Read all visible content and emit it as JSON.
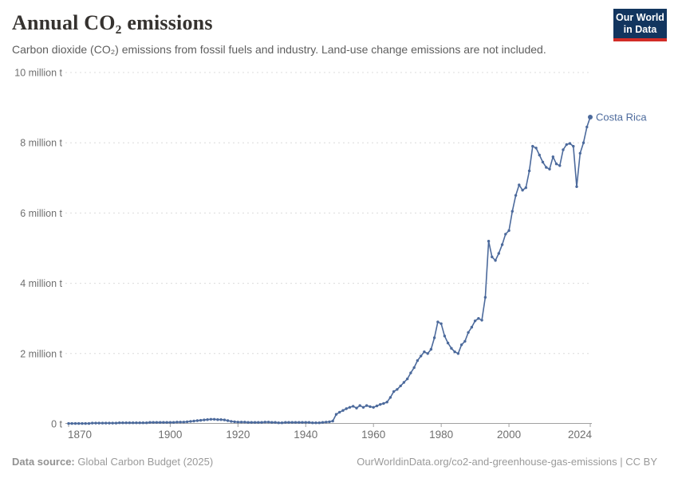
{
  "header": {
    "title": "Annual CO₂ emissions",
    "subtitle": "Carbon dioxide (CO₂) emissions from fossil fuels and industry. Land-use change emissions are not included.",
    "logo": {
      "line1": "Our World",
      "line2": "in Data",
      "bg_color": "#12355F",
      "accent_color": "#D22C27"
    }
  },
  "footer": {
    "source_label": "Data source:",
    "source_value": " Global Carbon Budget (2025)",
    "attribution": "OurWorldinData.org/co2-and-greenhouse-gas-emissions | CC BY"
  },
  "chart_data": {
    "type": "line",
    "title": "Annual CO₂ emissions",
    "series_label": "Costa Rica",
    "unit": "tonnes",
    "line_color": "#4C6A9C",
    "grid": "horizontal-dashed",
    "legend_position": "end-of-line-label",
    "ylim_million_t": [
      0,
      10
    ],
    "y_ticks": [
      {
        "value": 0,
        "label": "0 t"
      },
      {
        "value": 2,
        "label": "2 million t"
      },
      {
        "value": 4,
        "label": "4 million t"
      },
      {
        "value": 6,
        "label": "6 million t"
      },
      {
        "value": 8,
        "label": "8 million t"
      },
      {
        "value": 10,
        "label": "10 million t"
      }
    ],
    "x_ticks": [
      1870,
      1900,
      1920,
      1940,
      1960,
      1980,
      2000,
      2024
    ],
    "year_start": 1870,
    "year_end": 2024,
    "values_million_t": [
      0.01,
      0.01,
      0.01,
      0.01,
      0.01,
      0.01,
      0.01,
      0.02,
      0.02,
      0.02,
      0.02,
      0.02,
      0.02,
      0.02,
      0.02,
      0.03,
      0.03,
      0.03,
      0.03,
      0.03,
      0.03,
      0.03,
      0.03,
      0.03,
      0.04,
      0.04,
      0.04,
      0.04,
      0.04,
      0.04,
      0.04,
      0.04,
      0.05,
      0.05,
      0.05,
      0.06,
      0.07,
      0.08,
      0.09,
      0.1,
      0.11,
      0.12,
      0.13,
      0.13,
      0.12,
      0.12,
      0.11,
      0.09,
      0.07,
      0.06,
      0.05,
      0.05,
      0.05,
      0.04,
      0.04,
      0.04,
      0.04,
      0.04,
      0.05,
      0.05,
      0.04,
      0.04,
      0.03,
      0.03,
      0.04,
      0.04,
      0.04,
      0.04,
      0.04,
      0.04,
      0.04,
      0.04,
      0.03,
      0.03,
      0.03,
      0.04,
      0.05,
      0.06,
      0.08,
      0.27,
      0.33,
      0.38,
      0.43,
      0.47,
      0.5,
      0.45,
      0.52,
      0.47,
      0.52,
      0.49,
      0.47,
      0.51,
      0.55,
      0.58,
      0.62,
      0.75,
      0.92,
      0.98,
      1.08,
      1.18,
      1.28,
      1.45,
      1.6,
      1.8,
      1.93,
      2.05,
      2.0,
      2.12,
      2.45,
      2.9,
      2.85,
      2.5,
      2.3,
      2.15,
      2.05,
      2.0,
      2.25,
      2.35,
      2.6,
      2.75,
      2.93,
      3.0,
      2.95,
      3.6,
      5.2,
      4.75,
      4.65,
      4.85,
      5.1,
      5.4,
      5.5,
      6.05,
      6.5,
      6.8,
      6.65,
      6.72,
      7.2,
      7.9,
      7.85,
      7.65,
      7.45,
      7.3,
      7.25,
      7.6,
      7.4,
      7.35,
      7.8,
      7.95,
      7.98,
      7.9,
      6.75,
      7.7,
      8.0,
      8.45,
      8.73
    ]
  }
}
